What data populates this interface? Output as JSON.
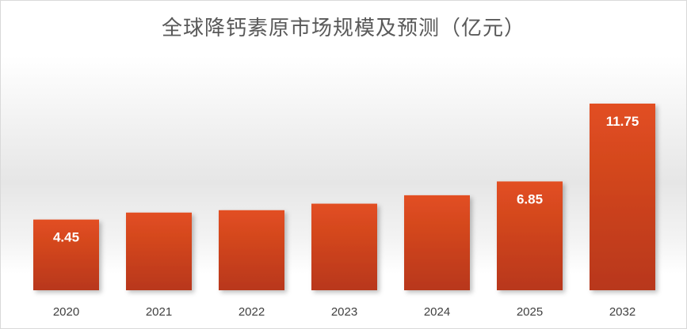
{
  "chart_data": {
    "type": "bar",
    "title": "全球降钙素原市场规模及预测（亿元）",
    "categories": [
      "2020",
      "2021",
      "2022",
      "2023",
      "2024",
      "2025",
      "2032"
    ],
    "values": [
      4.45,
      4.89,
      5.04,
      5.45,
      5.98,
      6.85,
      11.75
    ],
    "data_labels": [
      "4.45",
      "",
      "",
      "",
      "",
      "6.85",
      "11.75"
    ],
    "xlabel": "",
    "ylabel": "",
    "ylim": [
      0,
      12
    ],
    "grid": false,
    "legend": "none",
    "colors": {
      "bar_top": "#e24f21",
      "bar_bottom": "#b8371a",
      "label": "#ffffff"
    }
  }
}
